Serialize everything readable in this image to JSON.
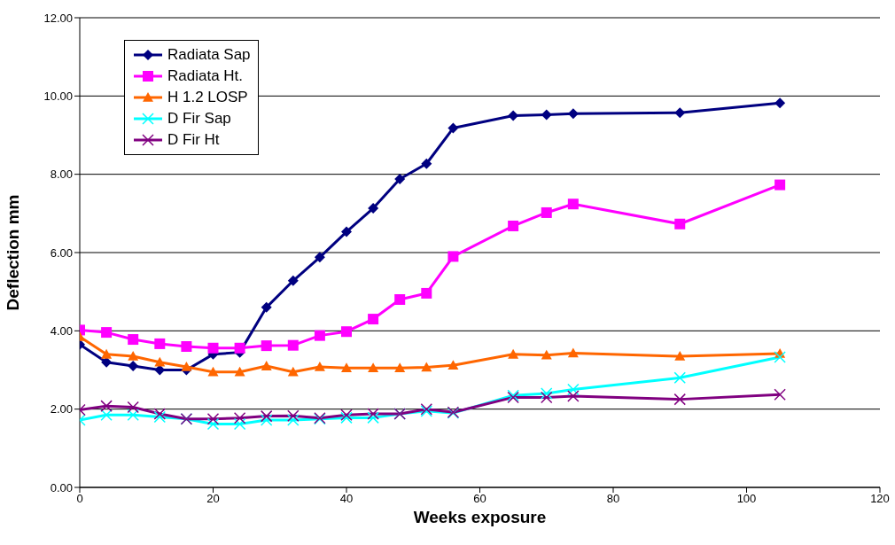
{
  "chart_data": {
    "type": "line",
    "xlabel": "Weeks exposure",
    "ylabel": "Deflection mm",
    "x": [
      0,
      4,
      8,
      12,
      16,
      20,
      24,
      28,
      32,
      36,
      40,
      44,
      48,
      52,
      56,
      65,
      70,
      74,
      90,
      105
    ],
    "series": [
      {
        "name": "Radiata Sap",
        "color": "#000080",
        "marker": "diamond",
        "values": [
          3.65,
          3.2,
          3.1,
          3.0,
          3.0,
          3.4,
          3.45,
          4.6,
          5.28,
          5.88,
          6.53,
          7.13,
          7.88,
          8.27,
          9.18,
          9.5,
          9.52,
          9.55,
          9.57,
          9.82
        ]
      },
      {
        "name": "Radiata Ht.",
        "color": "#ff00ff",
        "marker": "square",
        "values": [
          4.02,
          3.96,
          3.78,
          3.67,
          3.6,
          3.56,
          3.56,
          3.62,
          3.63,
          3.88,
          3.98,
          4.3,
          4.8,
          4.96,
          5.9,
          6.68,
          7.02,
          7.24,
          6.73,
          7.73
        ]
      },
      {
        "name": "H 1.2 LOSP",
        "color": "#ff6600",
        "marker": "triangle",
        "values": [
          3.85,
          3.4,
          3.35,
          3.2,
          3.08,
          2.95,
          2.95,
          3.1,
          2.95,
          3.08,
          3.05,
          3.05,
          3.05,
          3.07,
          3.12,
          3.4,
          3.38,
          3.43,
          3.35,
          3.42
        ]
      },
      {
        "name": "D Fir Sap",
        "color": "#00ffff",
        "marker": "cross",
        "values": [
          1.72,
          1.85,
          1.85,
          1.8,
          1.75,
          1.62,
          1.62,
          1.72,
          1.72,
          1.75,
          1.78,
          1.78,
          1.88,
          1.95,
          1.9,
          2.35,
          2.4,
          2.5,
          2.8,
          3.33
        ]
      },
      {
        "name": "D Fir Ht",
        "color": "#800080",
        "marker": "cross",
        "values": [
          1.98,
          2.08,
          2.05,
          1.88,
          1.75,
          1.75,
          1.77,
          1.82,
          1.83,
          1.77,
          1.85,
          1.88,
          1.88,
          2.0,
          1.92,
          2.3,
          2.3,
          2.33,
          2.25,
          2.37
        ]
      }
    ],
    "xlim": [
      0,
      120
    ],
    "xticks": [
      0,
      20,
      40,
      60,
      80,
      100,
      120
    ],
    "ylim": [
      0,
      12
    ],
    "yticks": [
      {
        "value": 0,
        "label": "0.00"
      },
      {
        "value": 2,
        "label": "2.00"
      },
      {
        "value": 4,
        "label": "4.00"
      },
      {
        "value": 6,
        "label": "6.00"
      },
      {
        "value": 8,
        "label": "8.00"
      },
      {
        "value": 10,
        "label": "10.00"
      },
      {
        "value": 12,
        "label": "12.00"
      }
    ],
    "grid": "y",
    "legend": "top left",
    "line_style": "solid"
  }
}
